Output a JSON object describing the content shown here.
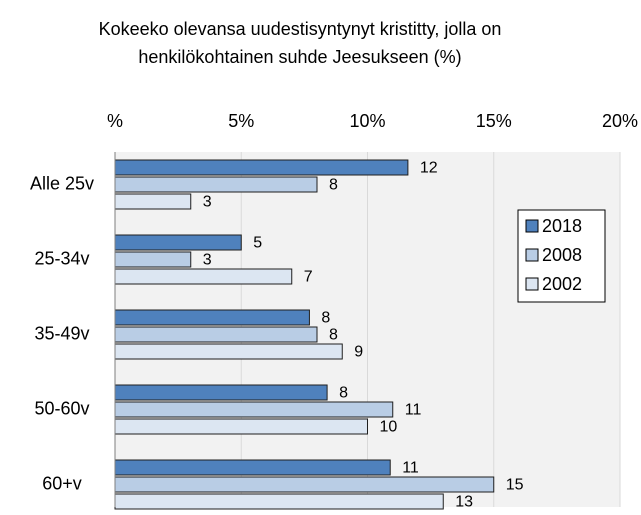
{
  "chart_data": {
    "type": "hbar",
    "title": [
      "Kokeeko olevansa uudestisyntynyt kristitty, jolla on",
      "henkilökohtainen suhde Jeesukseen (%)"
    ],
    "categories": [
      "Alle 25v",
      "25-34v",
      "35-49v",
      "50-60v",
      "60+v"
    ],
    "series": [
      {
        "name": "2018",
        "color": "#4f81bd",
        "values": [
          11.6,
          5,
          7.7,
          8.4,
          10.9
        ],
        "value_labels": [
          "12",
          "5",
          "8",
          "8",
          "11"
        ]
      },
      {
        "name": "2008",
        "color": "#b9cde5",
        "values": [
          8,
          3,
          8,
          11,
          15
        ],
        "value_labels": [
          "8",
          "3",
          "8",
          "11",
          "15"
        ]
      },
      {
        "name": "2002",
        "color": "#dce6f2",
        "values": [
          3,
          7,
          9,
          10,
          13
        ],
        "value_labels": [
          "3",
          "7",
          "9",
          "10",
          "13"
        ]
      }
    ],
    "xlim": [
      0,
      20
    ],
    "xticks": [
      {
        "value": 0,
        "label": "%"
      },
      {
        "value": 5,
        "label": "5%"
      },
      {
        "value": 10,
        "label": "10%"
      },
      {
        "value": 15,
        "label": "15%"
      },
      {
        "value": 20,
        "label": "20%"
      }
    ],
    "grid": true,
    "legend": "right"
  }
}
